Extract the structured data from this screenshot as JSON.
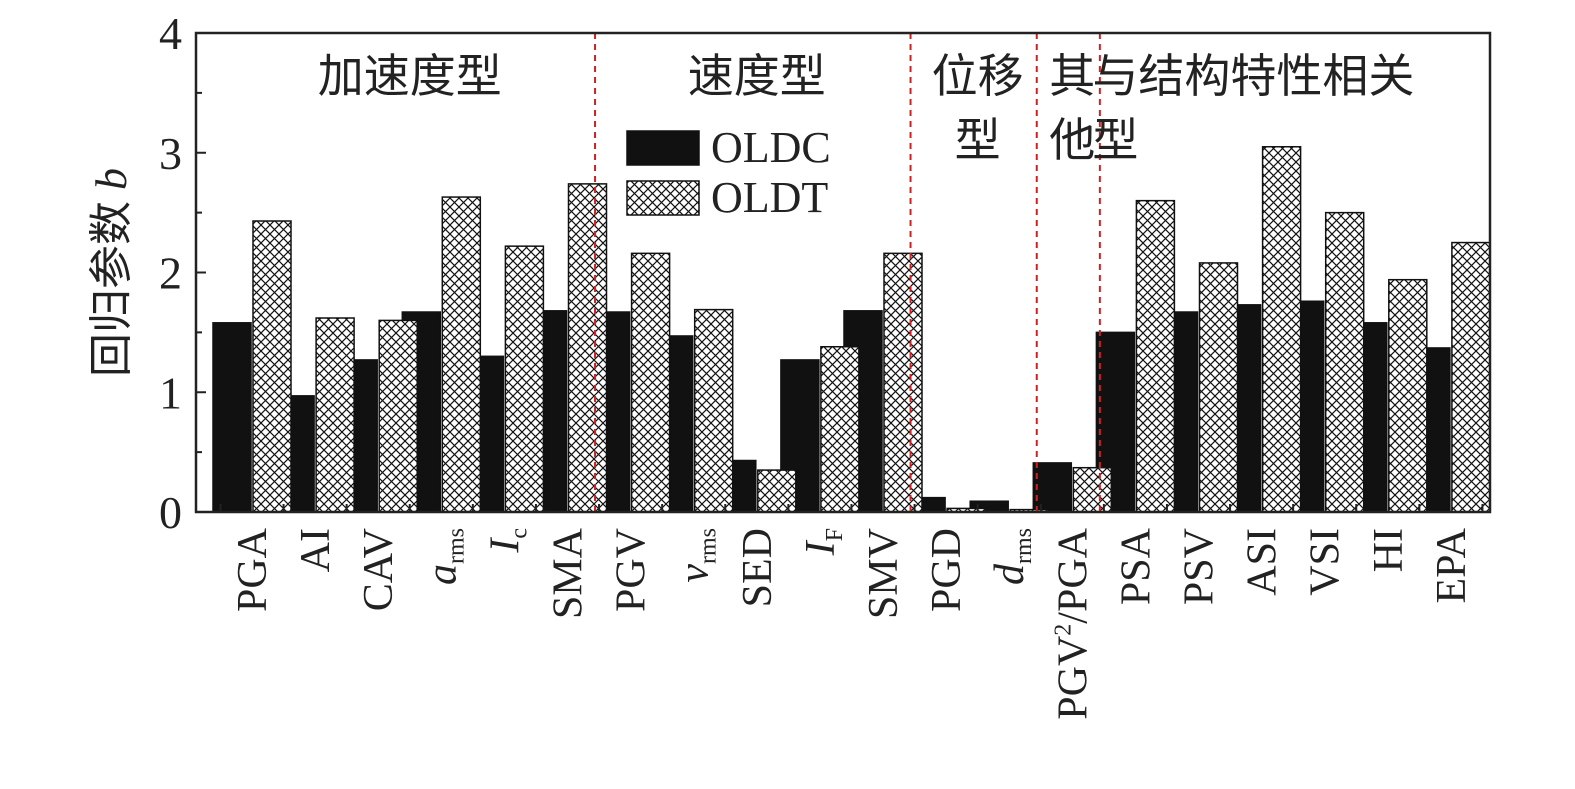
{
  "chart_data": {
    "type": "bar",
    "ylabel_text": "回归参数 ",
    "ylabel_italic": "b",
    "ylim": [
      0,
      4
    ],
    "yticks": [
      "0",
      "1",
      "2",
      "3",
      "4"
    ],
    "legend_position": "top-center",
    "categories": [
      {
        "main": "PGA"
      },
      {
        "main": "AI"
      },
      {
        "main": "CAV"
      },
      {
        "main": "a",
        "italic": true,
        "sub": "rms"
      },
      {
        "main": "I",
        "italic": true,
        "sub": "c"
      },
      {
        "main": "SMA"
      },
      {
        "main": "PGV"
      },
      {
        "main": "v",
        "italic": true,
        "sub": "rms"
      },
      {
        "main": "SED"
      },
      {
        "main": "I",
        "italic": true,
        "sub": "F"
      },
      {
        "main": "SMV"
      },
      {
        "main": "PGD"
      },
      {
        "main": "d",
        "italic": true,
        "sub": "rms"
      },
      {
        "main": "PGV",
        "sup": "2",
        "rest": "/PGA"
      },
      {
        "main": "PSA"
      },
      {
        "main": "PSV"
      },
      {
        "main": "ASI"
      },
      {
        "main": "VSI"
      },
      {
        "main": "HI"
      },
      {
        "main": "EPA"
      }
    ],
    "series": [
      {
        "name": "OLDC",
        "fill": "solid",
        "values": [
          1.58,
          0.97,
          1.27,
          1.67,
          1.3,
          1.68,
          1.67,
          1.47,
          0.43,
          1.27,
          1.68,
          0.12,
          0.09,
          0.41,
          1.5,
          1.67,
          1.73,
          1.76,
          1.58,
          1.37
        ]
      },
      {
        "name": "OLDT",
        "fill": "crosshatch",
        "values": [
          2.43,
          1.62,
          1.6,
          2.63,
          2.22,
          2.74,
          2.16,
          1.69,
          0.35,
          1.38,
          2.16,
          0.03,
          0.02,
          0.37,
          2.6,
          2.08,
          3.05,
          2.5,
          1.94,
          2.25
        ]
      }
    ],
    "groups": [
      {
        "lines": [
          "加速度型"
        ],
        "start": 0,
        "end": 5
      },
      {
        "lines": [
          "速度型"
        ],
        "start": 6,
        "end": 10
      },
      {
        "lines": [
          "位移",
          "型"
        ],
        "start": 11,
        "end": 12
      },
      {
        "lines": [
          "其",
          "他"
        ],
        "start": 13,
        "end": 13
      },
      {
        "lines": [
          "与结构特性相关",
          "型"
        ],
        "start": 14,
        "end": 19
      }
    ],
    "colors": {
      "bar": "#111111",
      "axis": "#222222",
      "separator": "#cc2222",
      "hatch_bg": "#ffffff"
    }
  }
}
